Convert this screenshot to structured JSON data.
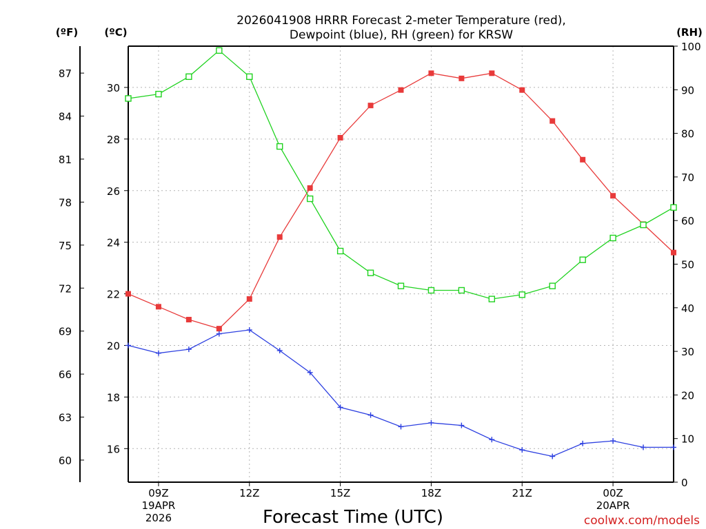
{
  "chart_data": {
    "type": "line",
    "title": [
      "2026041908 HRRR Forecast 2-meter Temperature (red),",
      "Dewpoint (blue), RH (green) for KRSW"
    ],
    "xlabel": "Forecast Time (UTC)",
    "units": {
      "fahrenheit": "(ºF)",
      "celsius": "(ºC)",
      "rh": "(RH)"
    },
    "x_hours": [
      8,
      9,
      10,
      11,
      12,
      13,
      14,
      15,
      16,
      17,
      18,
      19,
      20,
      21,
      22,
      23,
      24,
      25,
      26
    ],
    "x_ticks": [
      {
        "hour": 9,
        "lines": [
          "09Z",
          "19APR",
          "2026"
        ]
      },
      {
        "hour": 12,
        "lines": [
          "12Z"
        ]
      },
      {
        "hour": 15,
        "lines": [
          "15Z"
        ]
      },
      {
        "hour": 18,
        "lines": [
          "18Z"
        ]
      },
      {
        "hour": 21,
        "lines": [
          "21Z"
        ]
      },
      {
        "hour": 24,
        "lines": [
          "00Z",
          "20APR"
        ]
      }
    ],
    "xlim": [
      8,
      26
    ],
    "celsius_axis": {
      "range": [
        14.7,
        31.6
      ],
      "ticks": [
        16,
        18,
        20,
        22,
        24,
        26,
        28,
        30
      ]
    },
    "fahrenheit_axis": {
      "ticks": [
        60,
        63,
        66,
        69,
        72,
        75,
        78,
        81,
        84,
        87
      ]
    },
    "rh_axis": {
      "range": [
        0,
        100
      ],
      "ticks": [
        0,
        10,
        20,
        30,
        40,
        50,
        60,
        70,
        80,
        90,
        100
      ]
    },
    "series": [
      {
        "name": "2-meter Temperature",
        "axis": "celsius",
        "color": "#e83a3a",
        "marker": "filled-square",
        "values": [
          22.0,
          21.5,
          21.0,
          20.65,
          21.8,
          24.2,
          26.1,
          28.05,
          29.3,
          29.9,
          30.55,
          30.35,
          30.55,
          29.9,
          28.7,
          27.2,
          25.8,
          24.7,
          23.6
        ]
      },
      {
        "name": "Dewpoint",
        "axis": "celsius",
        "color": "#2b3ee0",
        "marker": "plus",
        "values": [
          20.0,
          19.7,
          19.85,
          20.45,
          20.6,
          19.8,
          18.95,
          17.6,
          17.3,
          16.85,
          17.0,
          16.9,
          16.35,
          15.95,
          15.7,
          16.2,
          16.3,
          16.05,
          16.05
        ]
      },
      {
        "name": "RH",
        "axis": "rh",
        "color": "#1fd21f",
        "marker": "open-square",
        "values": [
          88,
          89,
          93,
          99,
          93,
          77,
          65,
          53,
          48,
          45,
          44,
          44,
          42,
          43,
          45,
          51,
          56,
          59,
          63
        ]
      }
    ]
  },
  "credit": "coolwx.com/models"
}
